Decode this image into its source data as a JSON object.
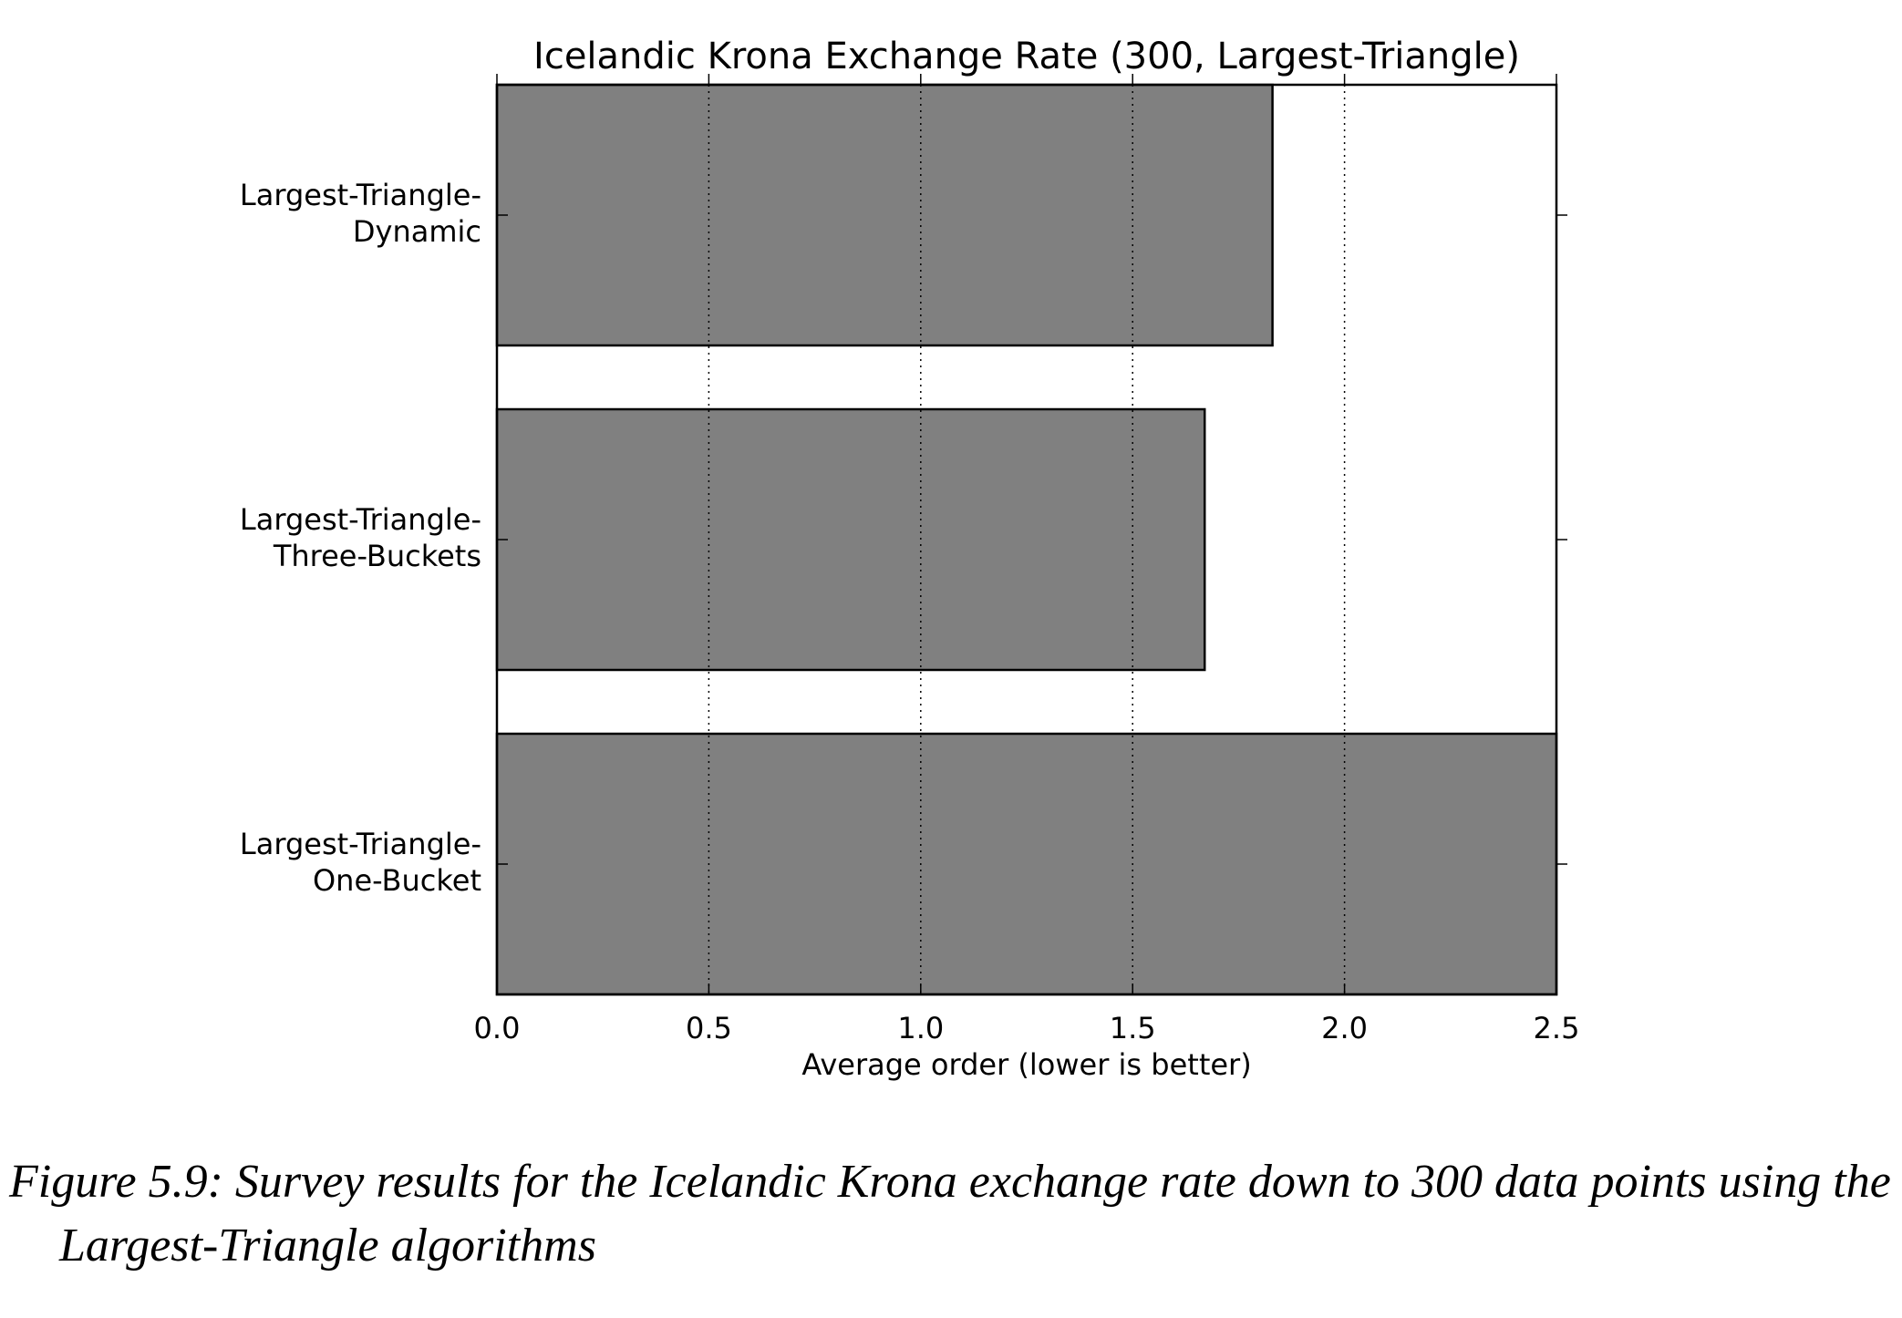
{
  "chart_data": {
    "type": "barh",
    "title": "Icelandic Krona Exchange Rate (300, Largest-Triangle)",
    "xlabel": "Average order (lower is better)",
    "categories": [
      [
        "Largest-Triangle-",
        "Dynamic"
      ],
      [
        "Largest-Triangle-",
        "Three-Buckets"
      ],
      [
        "Largest-Triangle-",
        "One-Bucket"
      ]
    ],
    "values": [
      1.83,
      1.67,
      2.5
    ],
    "color": "#808080",
    "xlim": [
      0,
      2.5
    ],
    "xticks": [
      {
        "value": 0,
        "label": "0.0"
      },
      0.5,
      {
        "value": 1,
        "label": "1.0"
      },
      1.5,
      {
        "value": 2,
        "label": "2.0"
      },
      2.5
    ],
    "grid": true
  },
  "caption": "Figure 5.9: Survey results for the Icelandic Krona exchange rate down to 300 data points using the Largest-Triangle algorithms"
}
